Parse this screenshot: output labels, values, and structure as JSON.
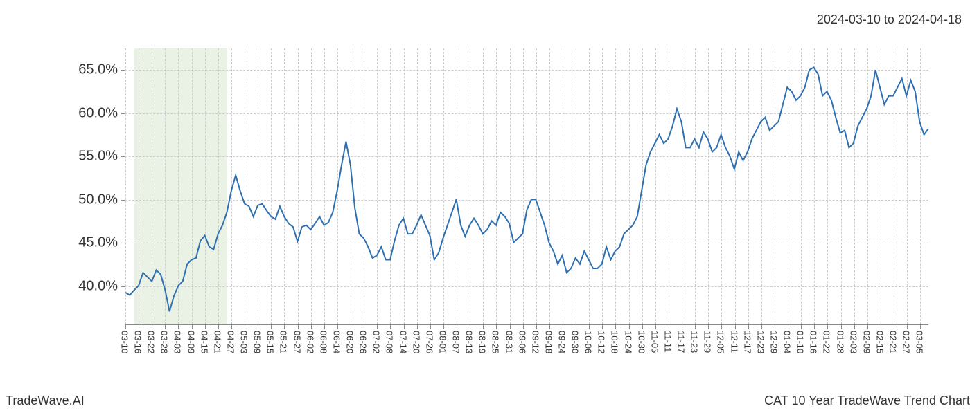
{
  "header": {
    "date_range": "2024-03-10 to 2024-04-18"
  },
  "footer": {
    "left": "TradeWave.AI",
    "right": "CAT 10 Year TradeWave Trend Chart"
  },
  "chart": {
    "type": "line",
    "background_color": "#ffffff",
    "grid_color": "#cccccc",
    "axis_color": "#888888",
    "line_color": "#2e6fb0",
    "line_width": 2.0,
    "highlight": {
      "from_index": 2,
      "to_index": 23,
      "fill_color": "#d8e8d0",
      "opacity": 0.55
    },
    "y_axis": {
      "min": 35.5,
      "max": 67.5,
      "ticks": [
        40.0,
        45.0,
        50.0,
        55.0,
        60.0,
        65.0
      ],
      "tick_labels": [
        "40.0%",
        "45.0%",
        "50.0%",
        "55.0%",
        "60.0%",
        "65.0%"
      ],
      "label_fontsize": 20,
      "label_color": "#333333"
    },
    "x_axis": {
      "tick_labels": [
        "03-10",
        "03-16",
        "03-22",
        "03-28",
        "04-03",
        "04-09",
        "04-15",
        "04-21",
        "04-27",
        "05-03",
        "05-09",
        "05-15",
        "05-21",
        "05-27",
        "06-02",
        "06-08",
        "06-14",
        "06-20",
        "06-26",
        "07-02",
        "07-08",
        "07-14",
        "07-20",
        "07-26",
        "08-01",
        "08-07",
        "08-13",
        "08-19",
        "08-25",
        "08-31",
        "09-06",
        "09-12",
        "09-18",
        "09-24",
        "09-30",
        "10-06",
        "10-12",
        "10-18",
        "10-24",
        "10-30",
        "11-05",
        "11-11",
        "11-17",
        "11-23",
        "11-29",
        "12-05",
        "12-11",
        "12-17",
        "12-23",
        "12-29",
        "01-04",
        "01-10",
        "01-16",
        "01-22",
        "01-28",
        "02-03",
        "02-09",
        "02-15",
        "02-21",
        "02-27",
        "03-05"
      ],
      "tick_indices": [
        0,
        3,
        6,
        9,
        12,
        15,
        18,
        21,
        24,
        27,
        30,
        33,
        36,
        39,
        42,
        45,
        48,
        51,
        54,
        57,
        60,
        63,
        66,
        69,
        72,
        75,
        78,
        81,
        84,
        87,
        90,
        93,
        96,
        99,
        102,
        105,
        108,
        111,
        114,
        117,
        120,
        123,
        126,
        129,
        132,
        135,
        138,
        141,
        144,
        147,
        150,
        153,
        156,
        159,
        162,
        165,
        168,
        171,
        174,
        177,
        180
      ],
      "label_fontsize": 13,
      "label_color": "#333333",
      "rotation": 90
    },
    "series": {
      "values": [
        39.2,
        38.9,
        39.5,
        40.0,
        41.5,
        41.0,
        40.5,
        41.8,
        41.3,
        39.5,
        37.0,
        38.8,
        40.0,
        40.5,
        42.5,
        43.0,
        43.2,
        45.2,
        45.8,
        44.5,
        44.2,
        46.0,
        47.0,
        48.5,
        51.0,
        52.8,
        51.0,
        49.5,
        49.2,
        48.0,
        49.3,
        49.5,
        48.7,
        48.0,
        47.7,
        49.2,
        48.0,
        47.2,
        46.8,
        45.1,
        46.8,
        47.0,
        46.5,
        47.2,
        48.0,
        47.0,
        47.3,
        48.5,
        51.0,
        54.0,
        56.7,
        54.0,
        49.0,
        46.0,
        45.5,
        44.5,
        43.2,
        43.5,
        44.5,
        43.0,
        43.0,
        45.2,
        47.0,
        47.8,
        46.0,
        46.0,
        47.0,
        48.2,
        47.0,
        45.8,
        43.0,
        43.8,
        45.5,
        47.0,
        48.5,
        50.0,
        47.0,
        45.7,
        47.0,
        47.8,
        47.0,
        46.0,
        46.5,
        47.5,
        47.0,
        48.5,
        48.0,
        47.2,
        45.0,
        45.5,
        46.0,
        48.8,
        50.0,
        50.0,
        48.5,
        47.0,
        45.0,
        44.0,
        42.5,
        43.5,
        41.5,
        42.0,
        43.2,
        42.5,
        44.0,
        43.0,
        42.0,
        42.0,
        42.5,
        44.5,
        43.0,
        44.0,
        44.5,
        46.0,
        46.5,
        47.0,
        48.0,
        51.0,
        54.0,
        55.5,
        56.5,
        57.5,
        56.5,
        57.0,
        58.5,
        60.5,
        59.0,
        56.0,
        56.0,
        57.0,
        56.0,
        57.8,
        57.0,
        55.5,
        56.0,
        57.5,
        56.0,
        55.0,
        53.5,
        55.5,
        54.5,
        55.5,
        57.0,
        58.0,
        59.0,
        59.5,
        58.0,
        58.5,
        59.0,
        61.0,
        63.0,
        62.5,
        61.5,
        62.0,
        63.0,
        65.0,
        65.3,
        64.5,
        62.0,
        62.5,
        61.5,
        59.5,
        57.7,
        58.0,
        56.0,
        56.5,
        58.5,
        59.5,
        60.5,
        62.0,
        65.0,
        63.0,
        61.0,
        62.0,
        62.0,
        63.0,
        64.0,
        62.0,
        63.8,
        62.5,
        59.0,
        57.5,
        58.2
      ]
    }
  }
}
